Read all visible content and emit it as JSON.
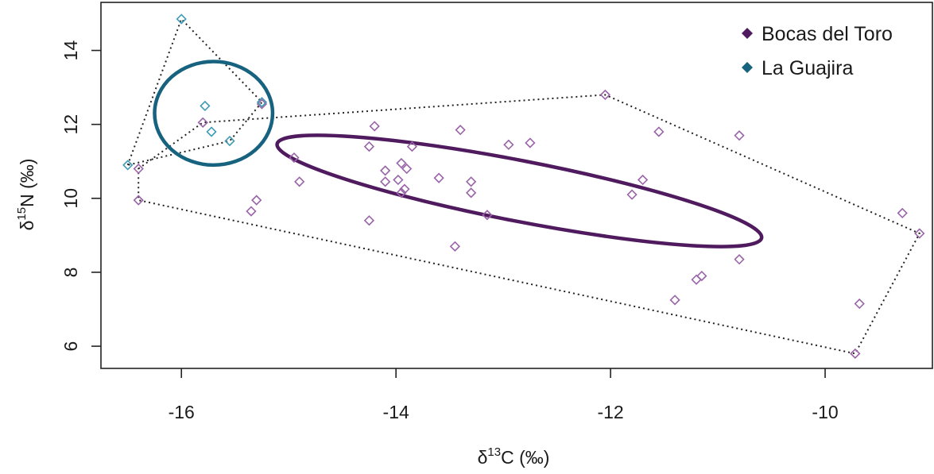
{
  "chart_data": {
    "type": "scatter",
    "xlabel": "δ13C (‰)",
    "ylabel": "δ15N (‰)",
    "xlim": [
      -16.75,
      -9.0
    ],
    "ylim": [
      5.4,
      15.3
    ],
    "xticks": [
      -16,
      -14,
      -12,
      -10
    ],
    "yticks": [
      6,
      8,
      10,
      12,
      14
    ],
    "legend_position": "top-right",
    "grid": false,
    "series": [
      {
        "name": "Bocas del Toro",
        "color": "#4f1a5e",
        "marker_color": "#9a64a8",
        "points": [
          {
            "x": -16.4,
            "y": 10.8
          },
          {
            "x": -16.4,
            "y": 9.95
          },
          {
            "x": -15.35,
            "y": 9.65
          },
          {
            "x": -15.3,
            "y": 9.95
          },
          {
            "x": -14.95,
            "y": 11.1
          },
          {
            "x": -14.9,
            "y": 10.45
          },
          {
            "x": -14.25,
            "y": 11.4
          },
          {
            "x": -14.2,
            "y": 11.95
          },
          {
            "x": -14.25,
            "y": 9.4
          },
          {
            "x": -14.1,
            "y": 10.75
          },
          {
            "x": -14.1,
            "y": 10.45
          },
          {
            "x": -13.98,
            "y": 10.5
          },
          {
            "x": -13.95,
            "y": 10.95
          },
          {
            "x": -13.9,
            "y": 10.8
          },
          {
            "x": -13.92,
            "y": 10.25
          },
          {
            "x": -13.95,
            "y": 10.15
          },
          {
            "x": -13.85,
            "y": 11.4
          },
          {
            "x": -13.6,
            "y": 10.55
          },
          {
            "x": -13.45,
            "y": 8.7
          },
          {
            "x": -13.4,
            "y": 11.85
          },
          {
            "x": -13.3,
            "y": 10.45
          },
          {
            "x": -13.3,
            "y": 10.15
          },
          {
            "x": -13.15,
            "y": 9.55
          },
          {
            "x": -12.95,
            "y": 11.45
          },
          {
            "x": -12.75,
            "y": 11.5
          },
          {
            "x": -12.05,
            "y": 12.8
          },
          {
            "x": -11.8,
            "y": 10.1
          },
          {
            "x": -11.7,
            "y": 10.5
          },
          {
            "x": -11.55,
            "y": 11.8
          },
          {
            "x": -11.4,
            "y": 7.25
          },
          {
            "x": -11.2,
            "y": 7.8
          },
          {
            "x": -11.15,
            "y": 7.9
          },
          {
            "x": -10.8,
            "y": 11.7
          },
          {
            "x": -10.8,
            "y": 8.35
          },
          {
            "x": -9.72,
            "y": 5.8
          },
          {
            "x": -9.68,
            "y": 7.15
          },
          {
            "x": -9.28,
            "y": 9.6
          },
          {
            "x": -9.12,
            "y": 9.05
          },
          {
            "x": -15.8,
            "y": 12.05
          },
          {
            "x": -15.25,
            "y": 12.55
          }
        ],
        "hull": [
          {
            "x": -16.4,
            "y": 10.8
          },
          {
            "x": -15.8,
            "y": 12.05
          },
          {
            "x": -12.05,
            "y": 12.8
          },
          {
            "x": -9.12,
            "y": 9.05
          },
          {
            "x": -9.72,
            "y": 5.8
          },
          {
            "x": -16.4,
            "y": 9.95
          }
        ],
        "ellipse": {
          "cx": -12.85,
          "cy": 10.2,
          "rx": 2.3,
          "ry": 0.82,
          "angle_deg": 11
        }
      },
      {
        "name": "La Guajira",
        "color": "#17637f",
        "marker_color": "#3e9ab5",
        "points": [
          {
            "x": -16.5,
            "y": 10.9
          },
          {
            "x": -16.0,
            "y": 14.85
          },
          {
            "x": -15.78,
            "y": 12.5
          },
          {
            "x": -15.72,
            "y": 11.8
          },
          {
            "x": -15.55,
            "y": 11.55
          },
          {
            "x": -15.25,
            "y": 12.6
          }
        ],
        "hull": [
          {
            "x": -16.5,
            "y": 10.9
          },
          {
            "x": -16.0,
            "y": 14.85
          },
          {
            "x": -15.25,
            "y": 12.6
          },
          {
            "x": -15.55,
            "y": 11.55
          }
        ],
        "ellipse": {
          "cx": -15.7,
          "cy": 12.3,
          "rx": 0.55,
          "ry": 1.4,
          "angle_deg": 0
        }
      }
    ]
  }
}
